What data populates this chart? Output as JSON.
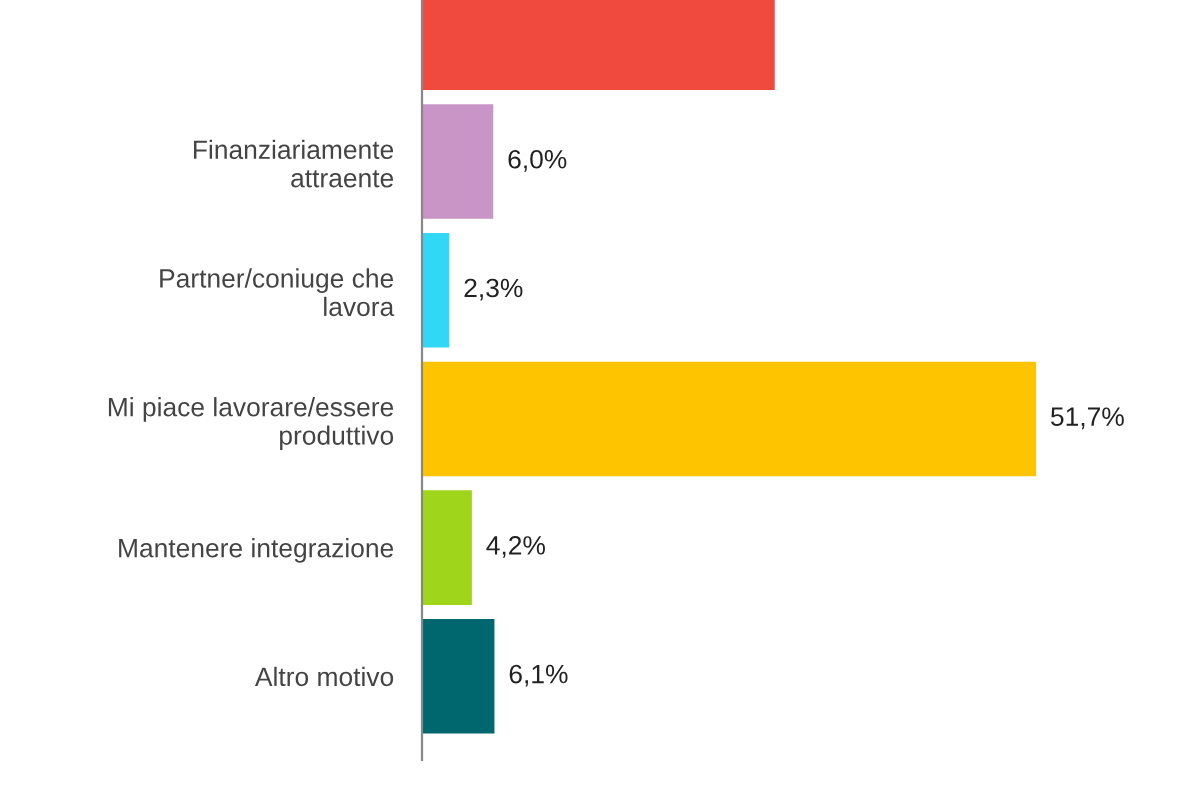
{
  "chart_data": {
    "type": "bar",
    "orientation": "horizontal",
    "categories": [
      null,
      "Finanziariamente attraente",
      "Partner/coniuge che lavora",
      "Mi piace lavorare/essere produttivo",
      "Mantenere integrazione",
      "Altro motivo"
    ],
    "values": [
      29.7,
      6.0,
      2.3,
      51.7,
      4.2,
      6.1
    ],
    "colors": [
      "#f04a3f",
      "#c994c6",
      "#33d7f6",
      "#ffc400",
      "#9fd51a",
      "#00676f"
    ],
    "value_labels": [
      null,
      "6,0%",
      "2,3%",
      "51,7%",
      "4,2%",
      "6,1%"
    ],
    "grid": false,
    "legend": false
  }
}
